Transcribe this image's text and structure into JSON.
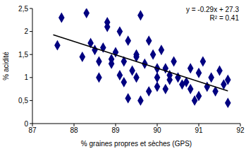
{
  "chart_data": {
    "type": "scatter",
    "x_label": "% graines propres et sèches (GPS)",
    "y_label": "% acidité",
    "annotations": [
      "y = -0.29x + 27.3",
      "R² = 0.41"
    ],
    "xlim": [
      87,
      92
    ],
    "xticks": [
      87,
      88,
      89,
      90,
      91,
      92
    ],
    "ylim": [
      0,
      2.5
    ],
    "yticks": [
      0,
      {
        "value": 0.5,
        "label": "0,5"
      },
      1,
      {
        "value": 1.5,
        "label": "1,5"
      },
      2,
      {
        "value": 2.5,
        "label": "2,5"
      }
    ],
    "grid": false,
    "series": [
      {
        "type": "scatter",
        "color": "#000080",
        "marker": "diamond",
        "x": [
          87.6,
          87.7,
          88.2,
          88.3,
          88.4,
          88.5,
          88.6,
          88.6,
          88.7,
          88.8,
          88.8,
          88.9,
          88.9,
          89.0,
          89.1,
          89.1,
          89.2,
          89.2,
          89.3,
          89.3,
          89.4,
          89.5,
          89.5,
          89.5,
          89.6,
          89.6,
          89.7,
          89.8,
          89.8,
          89.9,
          90.0,
          90.0,
          90.0,
          90.1,
          90.2,
          90.2,
          90.3,
          90.3,
          90.4,
          90.5,
          90.6,
          90.7,
          90.8,
          90.8,
          90.9,
          91.0,
          91.0,
          91.1,
          91.2,
          91.3,
          91.4,
          91.5,
          91.6,
          91.7,
          91.7
        ],
        "values": [
          1.7,
          2.3,
          1.45,
          2.4,
          1.75,
          1.6,
          1.0,
          1.35,
          1.65,
          2.2,
          2.1,
          1.4,
          1.3,
          1.55,
          1.05,
          2.0,
          1.35,
          0.9,
          0.55,
          1.8,
          1.15,
          1.5,
          1.45,
          1.0,
          2.35,
          0.5,
          1.3,
          1.8,
          0.7,
          1.5,
          1.2,
          1.0,
          0.8,
          1.6,
          1.2,
          0.75,
          1.05,
          0.95,
          1.35,
          1.0,
          0.85,
          0.9,
          1.2,
          0.75,
          0.5,
          1.1,
          0.6,
          1.35,
          0.8,
          1.0,
          0.7,
          1.15,
          0.85,
          0.95,
          0.45
        ]
      },
      {
        "type": "line",
        "color": "#000000",
        "line_style": "solid",
        "x": [
          87.5,
          91.7
        ],
        "values": [
          1.93,
          0.71
        ]
      }
    ]
  }
}
